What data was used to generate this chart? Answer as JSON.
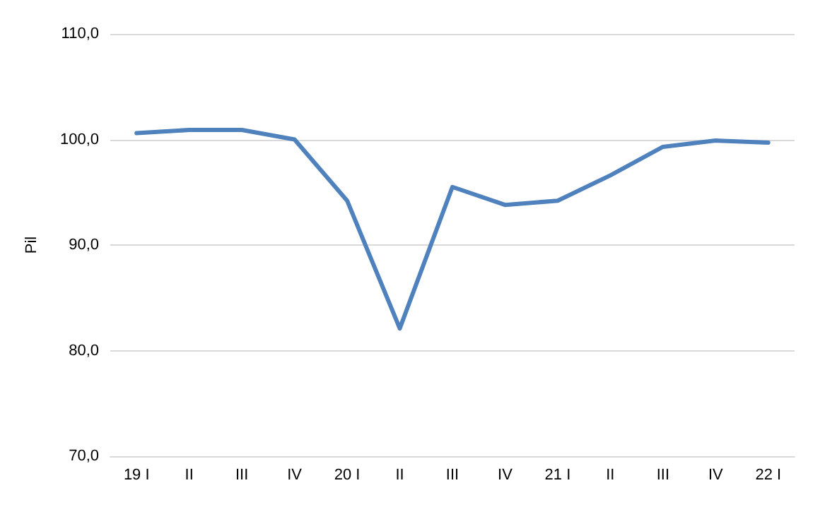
{
  "chart_data": {
    "type": "line",
    "ylabel": "Pil",
    "categories": [
      "19 I",
      "II",
      "III",
      "IV",
      "20 I",
      "II",
      "III",
      "IV",
      "21 I",
      "II",
      "III",
      "IV",
      "22 I"
    ],
    "series": [
      {
        "color": "#4f81bd",
        "values": [
          100.6,
          100.9,
          100.9,
          100.0,
          94.2,
          82.1,
          95.5,
          93.8,
          94.2,
          96.6,
          99.3,
          99.9,
          99.7
        ]
      }
    ],
    "ylim": [
      70,
      110
    ],
    "yticks": [
      {
        "value": 70,
        "label": "70,0"
      },
      {
        "value": 80,
        "label": "80,0"
      },
      {
        "value": 90,
        "label": "90,0"
      },
      {
        "value": 100,
        "label": "100,0"
      },
      {
        "value": 110,
        "label": "110,0"
      }
    ],
    "grid": "y",
    "marker": "none",
    "line_style": "solid"
  }
}
